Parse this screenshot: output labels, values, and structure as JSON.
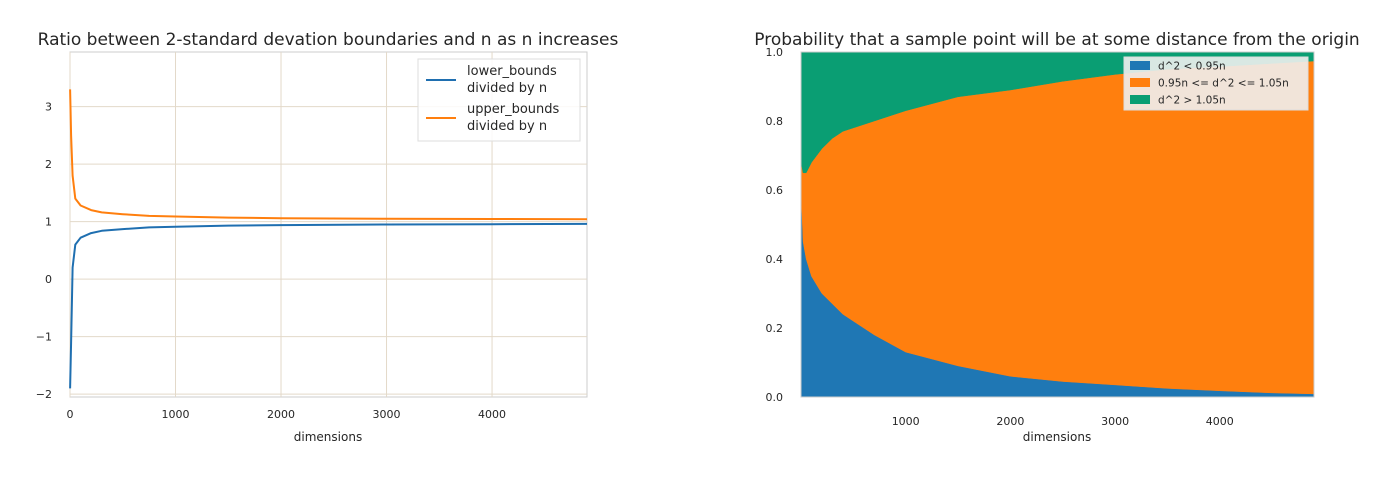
{
  "chart_data": [
    {
      "type": "line",
      "title": "Ratio between 2-standard devation boundaries and n as n increases",
      "xlabel": "dimensions",
      "ylabel": "",
      "xlim": [
        0,
        4900
      ],
      "ylim": [
        -2.05,
        3.95
      ],
      "xticks": [
        0,
        1000,
        2000,
        3000,
        4000
      ],
      "yticks": [
        -2,
        -1,
        0,
        1,
        2,
        3
      ],
      "grid": true,
      "legend": "top-right",
      "series": [
        {
          "name": "lower_bounds divided by n",
          "legend_lines": [
            "lower_bounds",
            "divided by n"
          ],
          "color": "#1f6fb0",
          "x": [
            1,
            10,
            25,
            50,
            100,
            200,
            300,
            500,
            750,
            1000,
            1500,
            2000,
            3000,
            4000,
            4900
          ],
          "y": [
            -1.9,
            -1.1,
            0.2,
            0.6,
            0.72,
            0.8,
            0.84,
            0.87,
            0.9,
            0.91,
            0.93,
            0.94,
            0.95,
            0.955,
            0.96
          ]
        },
        {
          "name": "upper_bounds divided by n",
          "legend_lines": [
            "upper_bounds",
            "divided by n"
          ],
          "color": "#ff7f0e",
          "x": [
            1,
            10,
            25,
            50,
            100,
            200,
            300,
            500,
            750,
            1000,
            1500,
            2000,
            3000,
            4000,
            4900
          ],
          "y": [
            3.3,
            2.5,
            1.8,
            1.4,
            1.28,
            1.2,
            1.16,
            1.13,
            1.1,
            1.09,
            1.07,
            1.06,
            1.05,
            1.045,
            1.04
          ]
        }
      ]
    },
    {
      "type": "area",
      "stacked": true,
      "title": "Probability that a sample point will be at some distance from the origin",
      "xlabel": "dimensions",
      "ylabel": "",
      "xlim": [
        0,
        4900
      ],
      "ylim": [
        0,
        1.0
      ],
      "xticks": [
        1000,
        2000,
        3000,
        4000
      ],
      "yticks": [
        0.0,
        0.2,
        0.4,
        0.6,
        0.8,
        1.0
      ],
      "grid": false,
      "legend": "top-right",
      "x": [
        1,
        20,
        50,
        100,
        200,
        300,
        400,
        500,
        700,
        1000,
        1500,
        2000,
        2500,
        3000,
        3500,
        4000,
        4500,
        4900
      ],
      "series": [
        {
          "name": "d^2 < 0.95n",
          "color": "#1f77b4",
          "values": [
            0.6,
            0.45,
            0.4,
            0.35,
            0.3,
            0.27,
            0.24,
            0.22,
            0.18,
            0.13,
            0.09,
            0.06,
            0.045,
            0.035,
            0.025,
            0.018,
            0.012,
            0.009
          ]
        },
        {
          "name": "0.95n <= d^2 <= 1.05n",
          "color": "#ff7f0e",
          "values": [
            0.08,
            0.2,
            0.25,
            0.33,
            0.42,
            0.48,
            0.53,
            0.56,
            0.62,
            0.7,
            0.78,
            0.83,
            0.87,
            0.9,
            0.925,
            0.94,
            0.955,
            0.965
          ]
        },
        {
          "name": "d^2 > 1.05n",
          "color": "#0a9e73",
          "values": [
            0.32,
            0.35,
            0.35,
            0.32,
            0.28,
            0.25,
            0.23,
            0.22,
            0.2,
            0.17,
            0.13,
            0.11,
            0.085,
            0.065,
            0.05,
            0.042,
            0.033,
            0.026
          ]
        }
      ]
    }
  ]
}
